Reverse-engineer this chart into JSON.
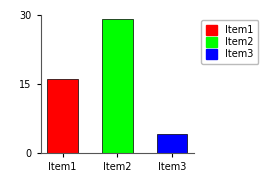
{
  "categories": [
    "Item1",
    "Item2",
    "Item3"
  ],
  "values": [
    16,
    29,
    4
  ],
  "bar_colors": [
    "#ff0000",
    "#00ff00",
    "#0000ff"
  ],
  "legend_labels": [
    "Item1",
    "Item2",
    "Item3"
  ],
  "legend_colors": [
    "#ff0000",
    "#00ff00",
    "#0000ff"
  ],
  "ylim": [
    0,
    30
  ],
  "yticks": [
    0,
    15,
    30
  ],
  "background_color": "#ffffff",
  "bar_width": 0.55,
  "figsize": [
    2.7,
    1.86
  ],
  "dpi": 100
}
